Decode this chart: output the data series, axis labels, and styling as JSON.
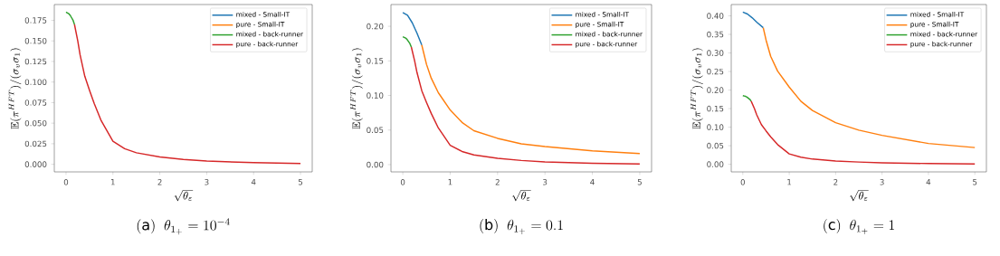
{
  "chart_data": [
    {
      "type": "line",
      "title": "\\mathrm{(a)}\\;\\; \\theta_{1_+} = 10^{-4}",
      "xlabel": "\\sqrt{\\theta_\\varepsilon}",
      "ylabel": "\\mathbb{E}(\\pi^{HFT})/(\\sigma_v\\sigma_1)",
      "xlim": [
        -0.25,
        5.25
      ],
      "ylim": [
        -0.0092,
        0.1942
      ],
      "xticks": [
        0,
        1,
        2,
        3,
        4,
        5
      ],
      "yticks": [
        {
          "value": 0,
          "label": "0.000"
        },
        {
          "value": 0.025,
          "label": "0.025"
        },
        {
          "value": 0.05,
          "label": "0.050"
        },
        {
          "value": 0.075,
          "label": "0.075"
        },
        {
          "value": 0.1,
          "label": "0.100"
        },
        {
          "value": 0.125,
          "label": "0.125"
        },
        {
          "value": 0.15,
          "label": "0.150"
        },
        {
          "value": 0.175,
          "label": "0.175"
        }
      ],
      "legend": "top right",
      "series": [
        {
          "name": "mixed - Small-IT",
          "color": "#1f77b4"
        },
        {
          "name": "pure - Small-IT",
          "color": "#ff7f0e"
        },
        {
          "name": "mixed - back-runner",
          "color": "#2ca02c",
          "x": [
            0,
            0.03,
            0.06,
            0.09,
            0.12,
            0.15,
            0.18
          ],
          "values": [
            0.185,
            0.184,
            0.183,
            0.181,
            0.178,
            0.175,
            0.17
          ]
        },
        {
          "name": "pure - back-runner",
          "color": "#d62728",
          "x": [
            0.18,
            0.25,
            0.3,
            0.4,
            0.5,
            0.6,
            0.75,
            1,
            1.25,
            1.5,
            2,
            2.5,
            3,
            4,
            5
          ],
          "values": [
            0.17,
            0.15,
            0.133,
            0.107,
            0.09,
            0.074,
            0.053,
            0.028,
            0.019,
            0.014,
            0.009,
            0.006,
            0.004,
            0.002,
            0.001
          ]
        }
      ]
    },
    {
      "type": "line",
      "title": "\\mathrm{(b)}\\;\\; \\theta_{1_+} = 0.1",
      "xlabel": "\\sqrt{\\theta_\\varepsilon}",
      "ylabel": "\\mathbb{E}(\\pi^{HFT})/(\\sigma_v\\sigma_1)",
      "xlim": [
        -0.25,
        5.25
      ],
      "ylim": [
        -0.0105,
        0.2315
      ],
      "xticks": [
        0,
        1,
        2,
        3,
        4,
        5
      ],
      "yticks": [
        {
          "value": 0,
          "label": "0.00"
        },
        {
          "value": 0.05,
          "label": "0.05"
        },
        {
          "value": 0.1,
          "label": "0.10"
        },
        {
          "value": 0.15,
          "label": "0.15"
        },
        {
          "value": 0.2,
          "label": "0.20"
        }
      ],
      "legend": "top right",
      "series": [
        {
          "name": "mixed - Small-IT",
          "color": "#1f77b4",
          "x": [
            0,
            0.1,
            0.2,
            0.3,
            0.4
          ],
          "values": [
            0.22,
            0.216,
            0.205,
            0.19,
            0.173
          ]
        },
        {
          "name": "pure - Small-IT",
          "color": "#ff7f0e",
          "x": [
            0.4,
            0.5,
            0.6,
            0.75,
            1,
            1.25,
            1.5,
            2,
            2.5,
            3,
            4,
            5
          ],
          "values": [
            0.173,
            0.145,
            0.125,
            0.104,
            0.079,
            0.061,
            0.049,
            0.038,
            0.03,
            0.026,
            0.02,
            0.016
          ]
        },
        {
          "name": "mixed - back-runner",
          "color": "#2ca02c",
          "x": [
            0,
            0.03,
            0.06,
            0.09,
            0.12,
            0.15,
            0.18
          ],
          "values": [
            0.185,
            0.184,
            0.183,
            0.181,
            0.178,
            0.175,
            0.17
          ]
        },
        {
          "name": "pure - back-runner",
          "color": "#d62728",
          "x": [
            0.18,
            0.25,
            0.3,
            0.4,
            0.5,
            0.6,
            0.75,
            1,
            1.25,
            1.5,
            2,
            2.5,
            3,
            4,
            5
          ],
          "values": [
            0.17,
            0.15,
            0.133,
            0.107,
            0.09,
            0.074,
            0.053,
            0.028,
            0.019,
            0.014,
            0.009,
            0.006,
            0.004,
            0.002,
            0.001
          ]
        }
      ]
    },
    {
      "type": "line",
      "title": "\\mathrm{(c)}\\;\\; \\theta_{1_+} = 1",
      "xlabel": "\\sqrt{\\theta_\\varepsilon}",
      "ylabel": "\\mathbb{E}(\\pi^{HFT})/(\\sigma_v\\sigma_1)",
      "xlim": [
        -0.25,
        5.25
      ],
      "ylim": [
        -0.0205,
        0.4305
      ],
      "xticks": [
        0,
        1,
        2,
        3,
        4,
        5
      ],
      "yticks": [
        {
          "value": 0,
          "label": "0.00"
        },
        {
          "value": 0.05,
          "label": "0.05"
        },
        {
          "value": 0.1,
          "label": "0.10"
        },
        {
          "value": 0.15,
          "label": "0.15"
        },
        {
          "value": 0.2,
          "label": "0.20"
        },
        {
          "value": 0.25,
          "label": "0.25"
        },
        {
          "value": 0.3,
          "label": "0.30"
        },
        {
          "value": 0.35,
          "label": "0.35"
        },
        {
          "value": 0.4,
          "label": "0.40"
        }
      ],
      "legend": "top right",
      "series": [
        {
          "name": "mixed - Small-IT",
          "color": "#1f77b4",
          "x": [
            0,
            0.1,
            0.2,
            0.3,
            0.44
          ],
          "values": [
            0.41,
            0.405,
            0.395,
            0.383,
            0.368
          ]
        },
        {
          "name": "pure - Small-IT",
          "color": "#ff7f0e",
          "x": [
            0.44,
            0.5,
            0.6,
            0.75,
            1,
            1.25,
            1.5,
            2,
            2.5,
            3,
            4,
            5
          ],
          "values": [
            0.368,
            0.335,
            0.291,
            0.251,
            0.208,
            0.17,
            0.145,
            0.112,
            0.092,
            0.078,
            0.056,
            0.045
          ]
        },
        {
          "name": "mixed - back-runner",
          "color": "#2ca02c",
          "x": [
            0,
            0.03,
            0.06,
            0.09,
            0.12,
            0.15,
            0.18
          ],
          "values": [
            0.185,
            0.184,
            0.183,
            0.181,
            0.178,
            0.175,
            0.17
          ]
        },
        {
          "name": "pure - back-runner",
          "color": "#d62728",
          "x": [
            0.18,
            0.25,
            0.3,
            0.4,
            0.5,
            0.6,
            0.75,
            1,
            1.25,
            1.5,
            2,
            2.5,
            3,
            4,
            5
          ],
          "values": [
            0.17,
            0.15,
            0.133,
            0.107,
            0.09,
            0.074,
            0.053,
            0.028,
            0.019,
            0.014,
            0.009,
            0.006,
            0.004,
            0.002,
            0.001
          ]
        }
      ]
    }
  ]
}
